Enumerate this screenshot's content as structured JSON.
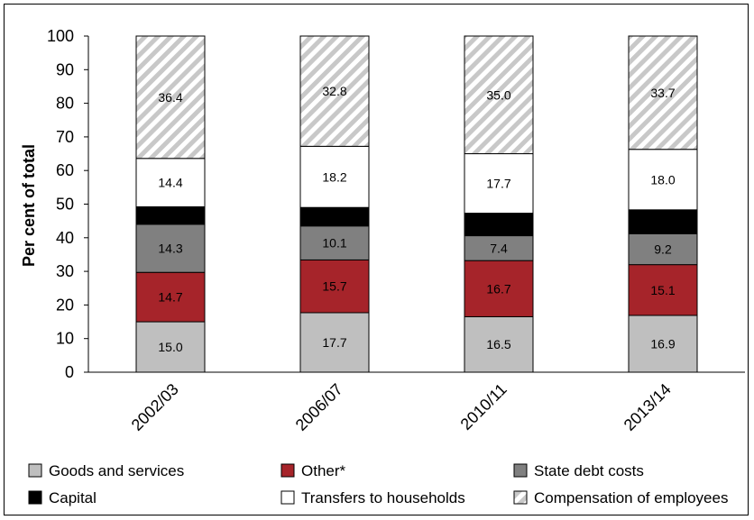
{
  "chart_data": {
    "type": "bar",
    "stacked": true,
    "ylabel": "Per cent of total",
    "xlabel": "",
    "title": "",
    "ylim": [
      0,
      100
    ],
    "yticks": [
      0,
      10,
      20,
      30,
      40,
      50,
      60,
      70,
      80,
      90,
      100
    ],
    "grid": false,
    "legend_position": "bottom",
    "categories": [
      "2002/03",
      "2006/07",
      "2010/11",
      "2013/14"
    ],
    "series": [
      {
        "name": "Goods and services",
        "values": [
          15.0,
          17.7,
          16.5,
          16.9
        ],
        "color": "#bfbfbf",
        "value_labels": [
          "15.0",
          "17.7",
          "16.5",
          "16.9"
        ]
      },
      {
        "name": "Other*",
        "values": [
          14.7,
          15.7,
          16.7,
          15.1
        ],
        "color": "#a6242a",
        "value_labels": [
          "14.7",
          "15.7",
          "16.7",
          "15.1"
        ]
      },
      {
        "name": "State debt costs",
        "values": [
          14.3,
          10.1,
          7.4,
          9.2
        ],
        "color": "#808080",
        "value_labels": [
          "14.3",
          "10.1",
          "7.4",
          "9.2"
        ]
      },
      {
        "name": "Capital",
        "values": [
          5.2,
          5.5,
          6.7,
          7.1
        ],
        "color": "#000000",
        "value_labels": [
          "5.2",
          "5.5",
          "6.7",
          "7.1"
        ]
      },
      {
        "name": "Transfers to households",
        "values": [
          14.4,
          18.2,
          17.7,
          18.0
        ],
        "color": "#ffffff",
        "value_labels": [
          "14.4",
          "18.2",
          "17.7",
          "18.0"
        ]
      },
      {
        "name": "Compensation of employees",
        "values": [
          36.4,
          32.8,
          35.0,
          33.7
        ],
        "color": "hatched",
        "value_labels": [
          "36.4",
          "32.8",
          "35.0",
          "33.7"
        ]
      }
    ]
  }
}
